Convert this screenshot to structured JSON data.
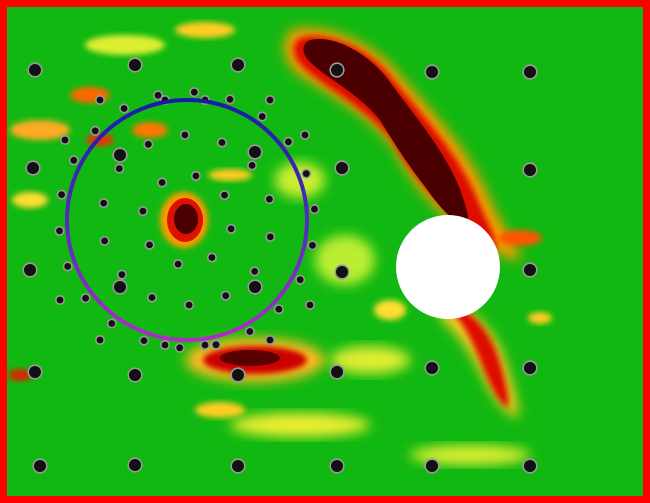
{
  "colors": {
    "frame": "#ff0000",
    "field": "#11b811",
    "hot_dark": "#4a0000",
    "hot": "#cc0000",
    "warm": "#ff3300",
    "mid": "#ff9900",
    "cool": "#ffff33",
    "obstacle": "#ffffff",
    "probe": "#111111",
    "probe_ring": "#9a9a9a",
    "circle_upper": "#1a1aa8",
    "circle_lower": "#b02cc8"
  },
  "icons": {
    "probe": "probe-dot-icon",
    "obstacle": "obstacle-disc-icon",
    "region": "region-circle-icon"
  }
}
